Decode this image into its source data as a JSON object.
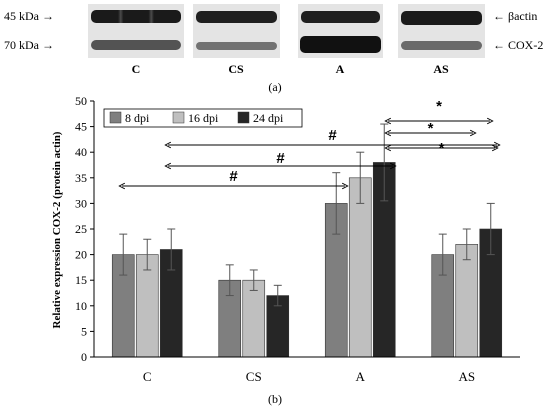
{
  "blot": {
    "markers": [
      {
        "label": "45 kDa →"
      },
      {
        "label": "70 kDa →"
      }
    ],
    "proteins": [
      {
        "label": "← βactin"
      },
      {
        "label": "← COX-2"
      }
    ],
    "lanes": [
      "C",
      "CS",
      "A",
      "AS"
    ],
    "panel_label": "(a)"
  },
  "chart_data": {
    "type": "bar",
    "categories": [
      "C",
      "CS",
      "A",
      "AS"
    ],
    "series": [
      {
        "name": "8 dpi",
        "color": "#7f7f7f",
        "values": [
          20,
          15,
          30,
          20
        ],
        "errors": [
          4,
          3,
          6,
          4
        ]
      },
      {
        "name": "16 dpi",
        "color": "#bfbfbf",
        "values": [
          20,
          15,
          35,
          22
        ],
        "errors": [
          3,
          2,
          5,
          3
        ]
      },
      {
        "name": "24 dpi",
        "color": "#262626",
        "values": [
          21,
          12,
          38,
          25
        ],
        "errors": [
          4,
          2,
          7.5,
          5
        ]
      }
    ],
    "ylabel": "Relative expression COX-2 (protein actin)",
    "ylim": [
      0,
      50
    ],
    "yticks": [
      0,
      5,
      10,
      15,
      20,
      25,
      30,
      35,
      40,
      45,
      50
    ],
    "gridlines": false,
    "legend_position": "top-left",
    "significance": [
      {
        "label": "#",
        "from": "C",
        "to": "A"
      },
      {
        "label": "#",
        "from": "CS",
        "to": "A"
      },
      {
        "label": "#",
        "from": "CS",
        "to": "AS"
      },
      {
        "label": "*",
        "from": "A",
        "to": "AS"
      },
      {
        "label": "*",
        "from": "A",
        "to": "AS"
      },
      {
        "label": "*",
        "from": "A",
        "to": "AS"
      }
    ],
    "panel_label": "(b)"
  }
}
